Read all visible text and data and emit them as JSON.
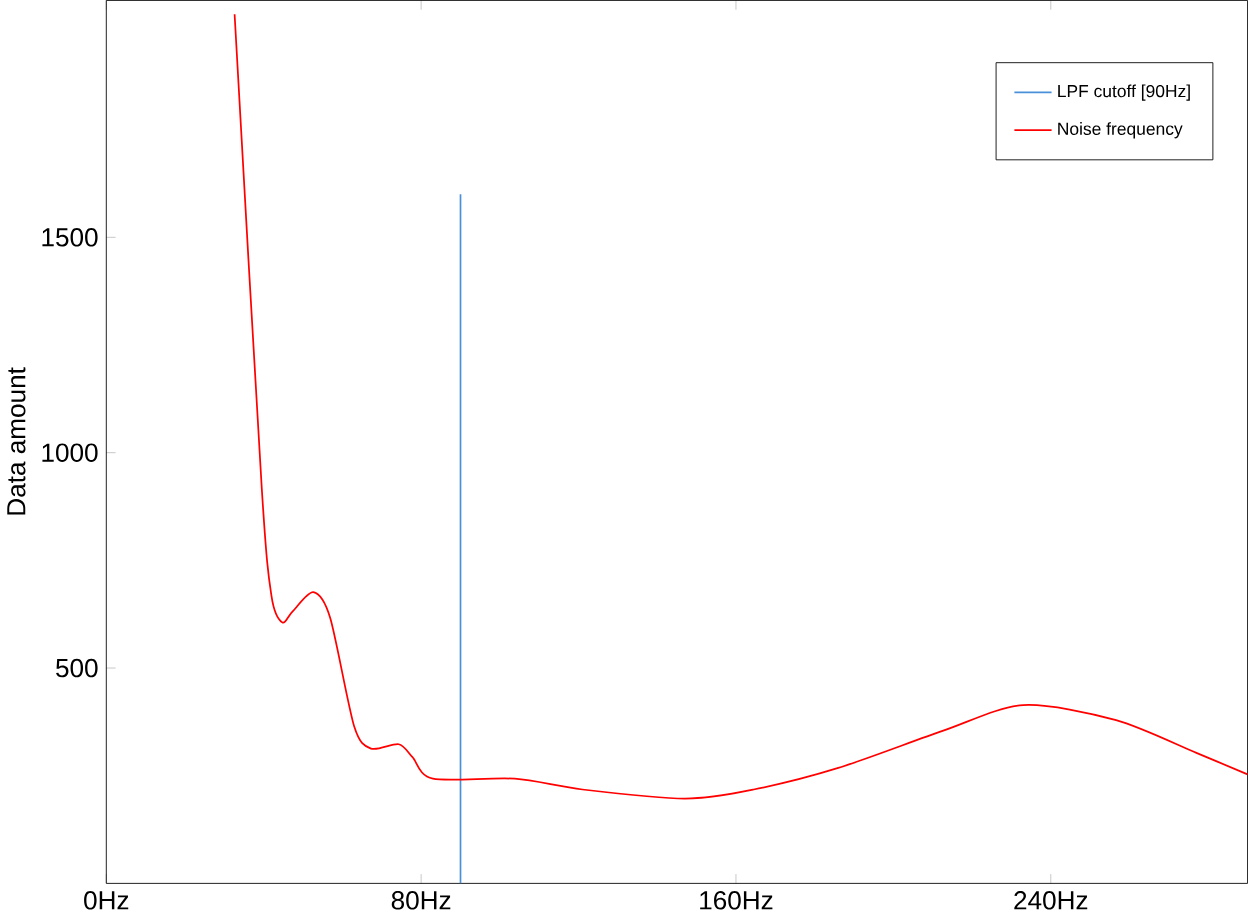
{
  "chart_data": {
    "type": "line",
    "ylabel": "Data amount",
    "xlim": [
      0,
      290
    ],
    "ylim": [
      0,
      2050
    ],
    "xticks": [
      {
        "value": 0,
        "label": "0Hz"
      },
      {
        "value": 80,
        "label": "80Hz"
      },
      {
        "value": 160,
        "label": "160Hz"
      },
      {
        "value": 240,
        "label": "240Hz"
      }
    ],
    "yticks": [
      500,
      1000,
      1500
    ],
    "grid": false,
    "legend": "top right",
    "marker": "none",
    "line_style": "solid",
    "series": [
      {
        "name": "LPF cutoff [90Hz]",
        "color": "#4a90d9",
        "x": [
          90,
          90
        ],
        "values": [
          0,
          1600
        ]
      },
      {
        "name": "Noise frequency",
        "color": "#ff0000",
        "x": [
          32.6,
          39.5,
          42,
          44.7,
          47.3,
          52.6,
          56.9,
          63,
          67.3,
          74.3,
          77.8,
          83,
          103.8,
          121,
          147,
          164.5,
          186,
          212.5,
          233,
          256.6,
          277,
          290
        ],
        "values": [
          2018,
          918,
          666,
          606,
          631,
          676,
          616,
          364,
          313,
          323,
          293,
          243,
          243,
          218,
          197,
          218,
          268,
          354,
          414,
          379,
          303,
          253
        ]
      }
    ]
  }
}
